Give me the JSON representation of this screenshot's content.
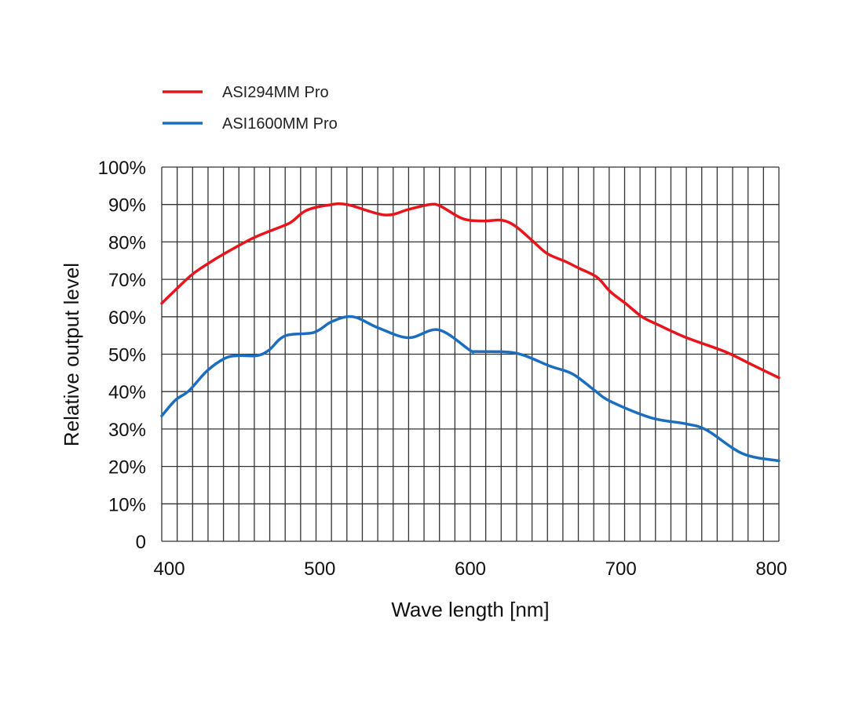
{
  "chart_data": {
    "type": "line",
    "title": "",
    "xlabel": "Wave length [nm]",
    "ylabel": "Relative output level",
    "xlim": [
      395,
      805
    ],
    "ylim": [
      0,
      100
    ],
    "xticks": [
      400,
      500,
      600,
      700,
      800
    ],
    "xtick_labels": [
      "400",
      "500",
      "600",
      "700",
      "800"
    ],
    "yticks": [
      0,
      10,
      20,
      30,
      40,
      50,
      60,
      70,
      80,
      90,
      100
    ],
    "ytick_labels": [
      "0",
      "10%",
      "20%",
      "30%",
      "40%",
      "50%",
      "60%",
      "70%",
      "80%",
      "90%",
      "100%"
    ],
    "grid": true,
    "legend_placement": "top-left",
    "series": [
      {
        "name": "ASI294MM Pro",
        "color": "#e8141b",
        "x": [
          395,
          414,
          425,
          435,
          456,
          477,
          482,
          491,
          505,
          518,
          543,
          559,
          573,
          580,
          595,
          609,
          621,
          630,
          641,
          651,
          663,
          672,
          684,
          693,
          703,
          714,
          724,
          743,
          769,
          787,
          805
        ],
        "y": [
          63.6,
          70.9,
          74.0,
          76.5,
          81.1,
          84.5,
          85.6,
          88.4,
          89.8,
          90.0,
          87.2,
          88.7,
          90.0,
          89.6,
          86.2,
          85.6,
          85.8,
          84.2,
          80.4,
          76.9,
          74.8,
          73.0,
          70.6,
          66.7,
          63.6,
          60.0,
          58.0,
          54.5,
          50.7,
          47.2,
          43.7
        ]
      },
      {
        "name": "ASI1600MM Pro",
        "color": "#1a6dbf",
        "x": [
          395,
          404,
          413,
          425,
          437,
          446,
          458,
          466,
          477,
          496,
          508,
          522,
          539,
          559,
          579,
          600,
          604,
          630,
          653,
          668,
          682,
          693,
          720,
          743,
          757,
          781,
          805
        ],
        "y": [
          33.5,
          37.7,
          40.2,
          45.5,
          48.9,
          49.6,
          49.6,
          51.0,
          54.9,
          55.8,
          58.7,
          60.0,
          57.0,
          54.4,
          56.5,
          51.0,
          50.7,
          50.3,
          46.8,
          44.7,
          40.5,
          37.4,
          33.0,
          31.4,
          29.7,
          23.4,
          21.5
        ]
      }
    ]
  }
}
